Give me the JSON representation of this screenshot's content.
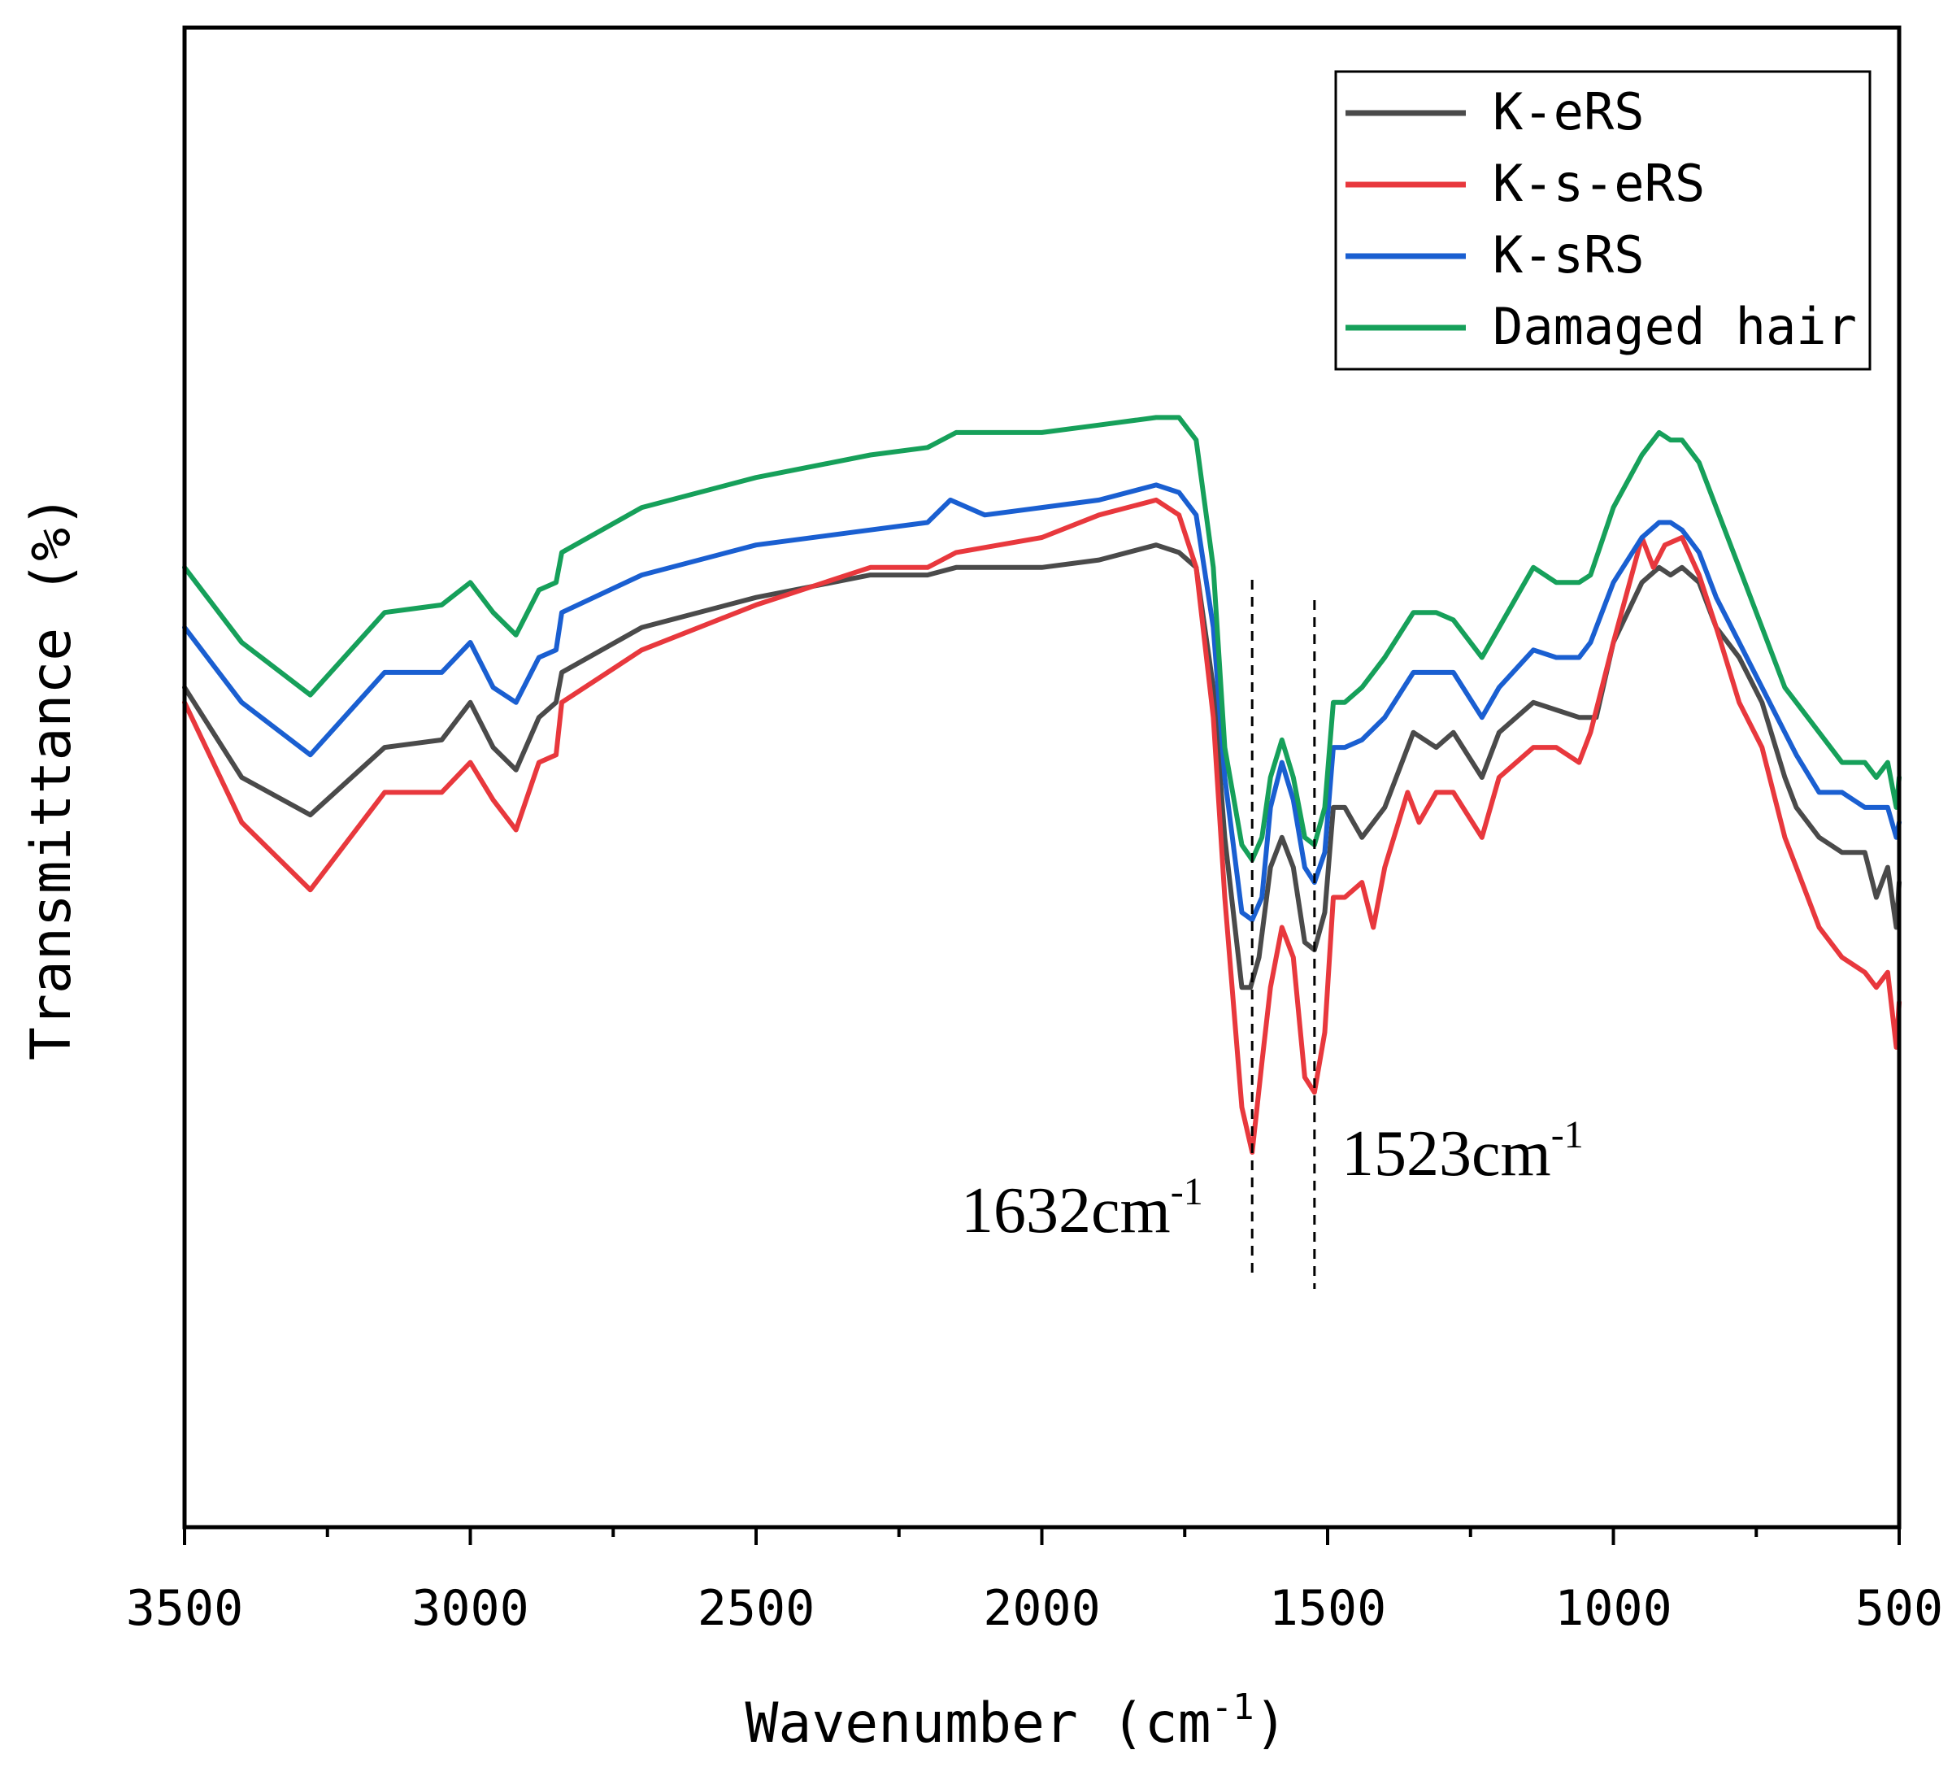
{
  "chart_data": {
    "type": "line",
    "title": "",
    "xlabel": "Wavenumber",
    "xlabel_unit": "cm",
    "xlabel_unit_exp": "-1",
    "ylabel": "Transmittance (%)",
    "xlim": [
      3500,
      500
    ],
    "ylim": [
      0,
      100
    ],
    "x_reversed": true,
    "yticks_shown": false,
    "xticks": [
      3500,
      3000,
      2500,
      2000,
      1500,
      1000,
      500
    ],
    "xtick_labels": [
      "3500",
      "3000",
      "2500",
      "2000",
      "1500",
      "1000",
      "500"
    ],
    "legend_position": "top-right",
    "series": [
      {
        "name": "K-eRS",
        "color": "#4a4a4a",
        "points": [
          [
            3500,
            56
          ],
          [
            3400,
            50
          ],
          [
            3280,
            47.5
          ],
          [
            3150,
            52
          ],
          [
            3050,
            52.5
          ],
          [
            3000,
            55
          ],
          [
            2960,
            52
          ],
          [
            2920,
            50.5
          ],
          [
            2880,
            54
          ],
          [
            2850,
            55
          ],
          [
            2840,
            57
          ],
          [
            2700,
            60
          ],
          [
            2500,
            62
          ],
          [
            2300,
            63.5
          ],
          [
            2200,
            63.5
          ],
          [
            2150,
            64
          ],
          [
            2000,
            64
          ],
          [
            1900,
            64.5
          ],
          [
            1800,
            65.5
          ],
          [
            1760,
            65
          ],
          [
            1730,
            64
          ],
          [
            1700,
            56
          ],
          [
            1680,
            46
          ],
          [
            1650,
            36
          ],
          [
            1635,
            36
          ],
          [
            1620,
            38
          ],
          [
            1600,
            44
          ],
          [
            1580,
            46
          ],
          [
            1560,
            44
          ],
          [
            1540,
            39
          ],
          [
            1523,
            38.5
          ],
          [
            1505,
            41
          ],
          [
            1490,
            48
          ],
          [
            1470,
            48
          ],
          [
            1440,
            46
          ],
          [
            1400,
            48
          ],
          [
            1350,
            53
          ],
          [
            1310,
            52
          ],
          [
            1280,
            53
          ],
          [
            1230,
            50
          ],
          [
            1200,
            53
          ],
          [
            1140,
            55
          ],
          [
            1100,
            54.5
          ],
          [
            1060,
            54
          ],
          [
            1030,
            54
          ],
          [
            1000,
            59
          ],
          [
            950,
            63
          ],
          [
            920,
            64
          ],
          [
            900,
            63.5
          ],
          [
            880,
            64
          ],
          [
            850,
            63
          ],
          [
            820,
            60
          ],
          [
            780,
            58
          ],
          [
            740,
            55
          ],
          [
            700,
            50
          ],
          [
            680,
            48
          ],
          [
            640,
            46
          ],
          [
            600,
            45
          ],
          [
            560,
            45
          ],
          [
            540,
            42
          ],
          [
            520,
            44
          ],
          [
            505,
            40
          ],
          [
            500,
            43
          ]
        ]
      },
      {
        "name": "K-s-eRS",
        "color": "#e8383d",
        "points": [
          [
            3500,
            55
          ],
          [
            3400,
            47
          ],
          [
            3280,
            42.5
          ],
          [
            3150,
            49
          ],
          [
            3050,
            49
          ],
          [
            3000,
            51
          ],
          [
            2960,
            48.5
          ],
          [
            2920,
            46.5
          ],
          [
            2880,
            51
          ],
          [
            2850,
            51.5
          ],
          [
            2840,
            55
          ],
          [
            2700,
            58.5
          ],
          [
            2500,
            61.5
          ],
          [
            2300,
            64
          ],
          [
            2200,
            64
          ],
          [
            2150,
            65
          ],
          [
            2000,
            66
          ],
          [
            1900,
            67.5
          ],
          [
            1800,
            68.5
          ],
          [
            1760,
            67.5
          ],
          [
            1730,
            64
          ],
          [
            1700,
            54
          ],
          [
            1680,
            42
          ],
          [
            1650,
            28
          ],
          [
            1632,
            25
          ],
          [
            1615,
            31
          ],
          [
            1600,
            36
          ],
          [
            1580,
            40
          ],
          [
            1560,
            38
          ],
          [
            1540,
            30
          ],
          [
            1523,
            29
          ],
          [
            1505,
            33
          ],
          [
            1490,
            42
          ],
          [
            1470,
            42
          ],
          [
            1440,
            43
          ],
          [
            1420,
            40
          ],
          [
            1400,
            44
          ],
          [
            1360,
            49
          ],
          [
            1340,
            47
          ],
          [
            1310,
            49
          ],
          [
            1280,
            49
          ],
          [
            1230,
            46
          ],
          [
            1200,
            50
          ],
          [
            1140,
            52
          ],
          [
            1100,
            52
          ],
          [
            1060,
            51
          ],
          [
            1040,
            53
          ],
          [
            1000,
            59
          ],
          [
            950,
            66
          ],
          [
            930,
            64
          ],
          [
            910,
            65.5
          ],
          [
            880,
            66
          ],
          [
            850,
            63.5
          ],
          [
            820,
            60
          ],
          [
            780,
            55
          ],
          [
            740,
            52
          ],
          [
            700,
            46
          ],
          [
            680,
            44
          ],
          [
            640,
            40
          ],
          [
            600,
            38
          ],
          [
            560,
            37
          ],
          [
            540,
            36
          ],
          [
            520,
            37
          ],
          [
            505,
            32
          ],
          [
            500,
            35
          ]
        ]
      },
      {
        "name": "K-sRS",
        "color": "#1a5fd1",
        "points": [
          [
            3500,
            60
          ],
          [
            3400,
            55
          ],
          [
            3280,
            51.5
          ],
          [
            3150,
            57
          ],
          [
            3050,
            57
          ],
          [
            3000,
            59
          ],
          [
            2960,
            56
          ],
          [
            2920,
            55
          ],
          [
            2880,
            58
          ],
          [
            2850,
            58.5
          ],
          [
            2840,
            61
          ],
          [
            2700,
            63.5
          ],
          [
            2500,
            65.5
          ],
          [
            2300,
            66.5
          ],
          [
            2200,
            67
          ],
          [
            2160,
            68.5
          ],
          [
            2100,
            67.5
          ],
          [
            2000,
            68
          ],
          [
            1900,
            68.5
          ],
          [
            1800,
            69.5
          ],
          [
            1760,
            69
          ],
          [
            1730,
            67.5
          ],
          [
            1700,
            60
          ],
          [
            1680,
            50
          ],
          [
            1650,
            41
          ],
          [
            1632,
            40.5
          ],
          [
            1615,
            42
          ],
          [
            1600,
            48
          ],
          [
            1580,
            51
          ],
          [
            1560,
            48.5
          ],
          [
            1540,
            44
          ],
          [
            1523,
            43
          ],
          [
            1505,
            45
          ],
          [
            1490,
            52
          ],
          [
            1470,
            52
          ],
          [
            1440,
            52.5
          ],
          [
            1400,
            54
          ],
          [
            1350,
            57
          ],
          [
            1310,
            57
          ],
          [
            1280,
            57
          ],
          [
            1230,
            54
          ],
          [
            1200,
            56
          ],
          [
            1140,
            58.5
          ],
          [
            1100,
            58
          ],
          [
            1060,
            58
          ],
          [
            1040,
            59
          ],
          [
            1000,
            63
          ],
          [
            950,
            66
          ],
          [
            920,
            67
          ],
          [
            900,
            67
          ],
          [
            880,
            66.5
          ],
          [
            850,
            65
          ],
          [
            820,
            62
          ],
          [
            780,
            59
          ],
          [
            740,
            56
          ],
          [
            700,
            53
          ],
          [
            680,
            51.5
          ],
          [
            640,
            49
          ],
          [
            600,
            49
          ],
          [
            560,
            48
          ],
          [
            540,
            48
          ],
          [
            520,
            48
          ],
          [
            505,
            46
          ],
          [
            500,
            47
          ]
        ]
      },
      {
        "name": "Damaged hair",
        "color": "#16a05a",
        "points": [
          [
            3500,
            64
          ],
          [
            3400,
            59
          ],
          [
            3280,
            55.5
          ],
          [
            3150,
            61
          ],
          [
            3050,
            61.5
          ],
          [
            3000,
            63
          ],
          [
            2960,
            61
          ],
          [
            2920,
            59.5
          ],
          [
            2880,
            62.5
          ],
          [
            2850,
            63
          ],
          [
            2840,
            65
          ],
          [
            2700,
            68
          ],
          [
            2500,
            70
          ],
          [
            2300,
            71.5
          ],
          [
            2200,
            72
          ],
          [
            2150,
            73
          ],
          [
            2000,
            73
          ],
          [
            1900,
            73.5
          ],
          [
            1800,
            74
          ],
          [
            1760,
            74
          ],
          [
            1730,
            72.5
          ],
          [
            1700,
            64
          ],
          [
            1680,
            52
          ],
          [
            1650,
            45.5
          ],
          [
            1632,
            44.5
          ],
          [
            1615,
            46
          ],
          [
            1600,
            50
          ],
          [
            1580,
            52.5
          ],
          [
            1560,
            50
          ],
          [
            1540,
            46
          ],
          [
            1523,
            45.5
          ],
          [
            1505,
            48
          ],
          [
            1490,
            55
          ],
          [
            1470,
            55
          ],
          [
            1440,
            56
          ],
          [
            1400,
            58
          ],
          [
            1350,
            61
          ],
          [
            1310,
            61
          ],
          [
            1280,
            60.5
          ],
          [
            1230,
            58
          ],
          [
            1200,
            60
          ],
          [
            1140,
            64
          ],
          [
            1100,
            63
          ],
          [
            1060,
            63
          ],
          [
            1040,
            63.5
          ],
          [
            1000,
            68
          ],
          [
            950,
            71.5
          ],
          [
            920,
            73
          ],
          [
            900,
            72.5
          ],
          [
            880,
            72.5
          ],
          [
            850,
            71
          ],
          [
            820,
            68
          ],
          [
            780,
            64
          ],
          [
            740,
            60
          ],
          [
            700,
            56
          ],
          [
            680,
            55
          ],
          [
            640,
            53
          ],
          [
            600,
            51
          ],
          [
            560,
            51
          ],
          [
            540,
            50
          ],
          [
            520,
            51
          ],
          [
            505,
            48
          ],
          [
            500,
            50
          ]
        ]
      }
    ],
    "annotations": [
      {
        "x": 1632,
        "label": "1632cm",
        "sup": "-1"
      },
      {
        "x": 1523,
        "label": "1523cm",
        "sup": "-1"
      }
    ]
  }
}
